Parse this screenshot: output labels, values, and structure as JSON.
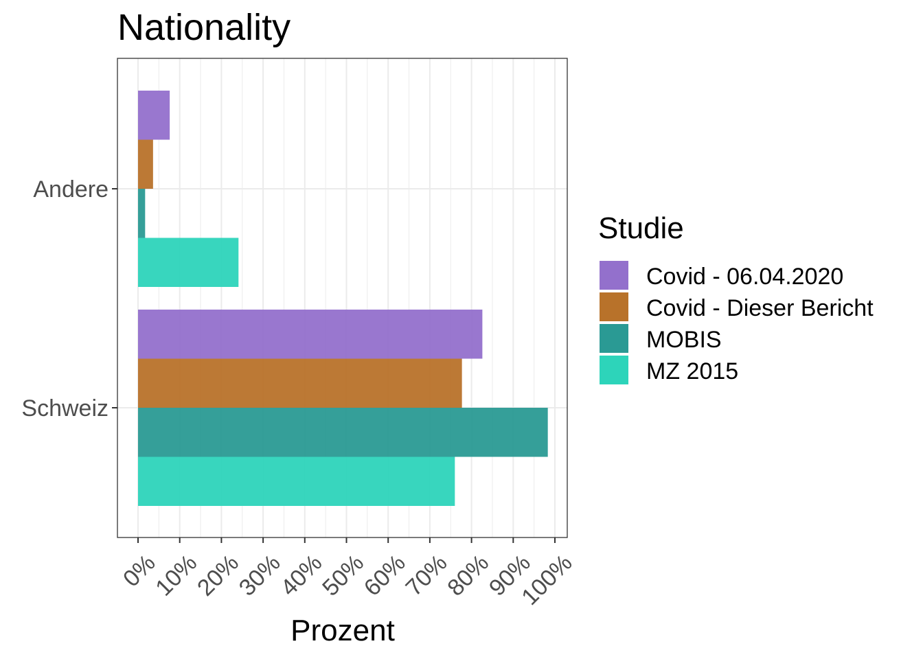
{
  "chart_data": {
    "type": "bar",
    "orientation": "horizontal",
    "title": "Nationality",
    "xlabel": "Prozent",
    "ylabel": "",
    "categories": [
      "Andere",
      "Schweiz"
    ],
    "xlim": [
      0,
      1.03
    ],
    "x_ticks": [
      0,
      0.1,
      0.2,
      0.3,
      0.4,
      0.5,
      0.6,
      0.7,
      0.8,
      0.9,
      1.0
    ],
    "x_tick_labels": [
      "0%",
      "10%",
      "20%",
      "30%",
      "40%",
      "50%",
      "60%",
      "70%",
      "80%",
      "90%",
      "100%"
    ],
    "grid": true,
    "legend": {
      "title": "Studie",
      "placement": "right"
    },
    "series": [
      {
        "name": "Covid - 06.04.2020",
        "color": "#9370CC",
        "values": [
          0.076,
          0.826
        ]
      },
      {
        "name": "Covid - Dieser Bericht",
        "color": "#B8722A",
        "values": [
          0.036,
          0.777
        ]
      },
      {
        "name": "MOBIS",
        "color": "#2A9A94",
        "values": [
          0.017,
          0.983
        ]
      },
      {
        "name": "MZ 2015",
        "color": "#2DD4BA",
        "values": [
          0.241,
          0.76
        ]
      }
    ]
  }
}
